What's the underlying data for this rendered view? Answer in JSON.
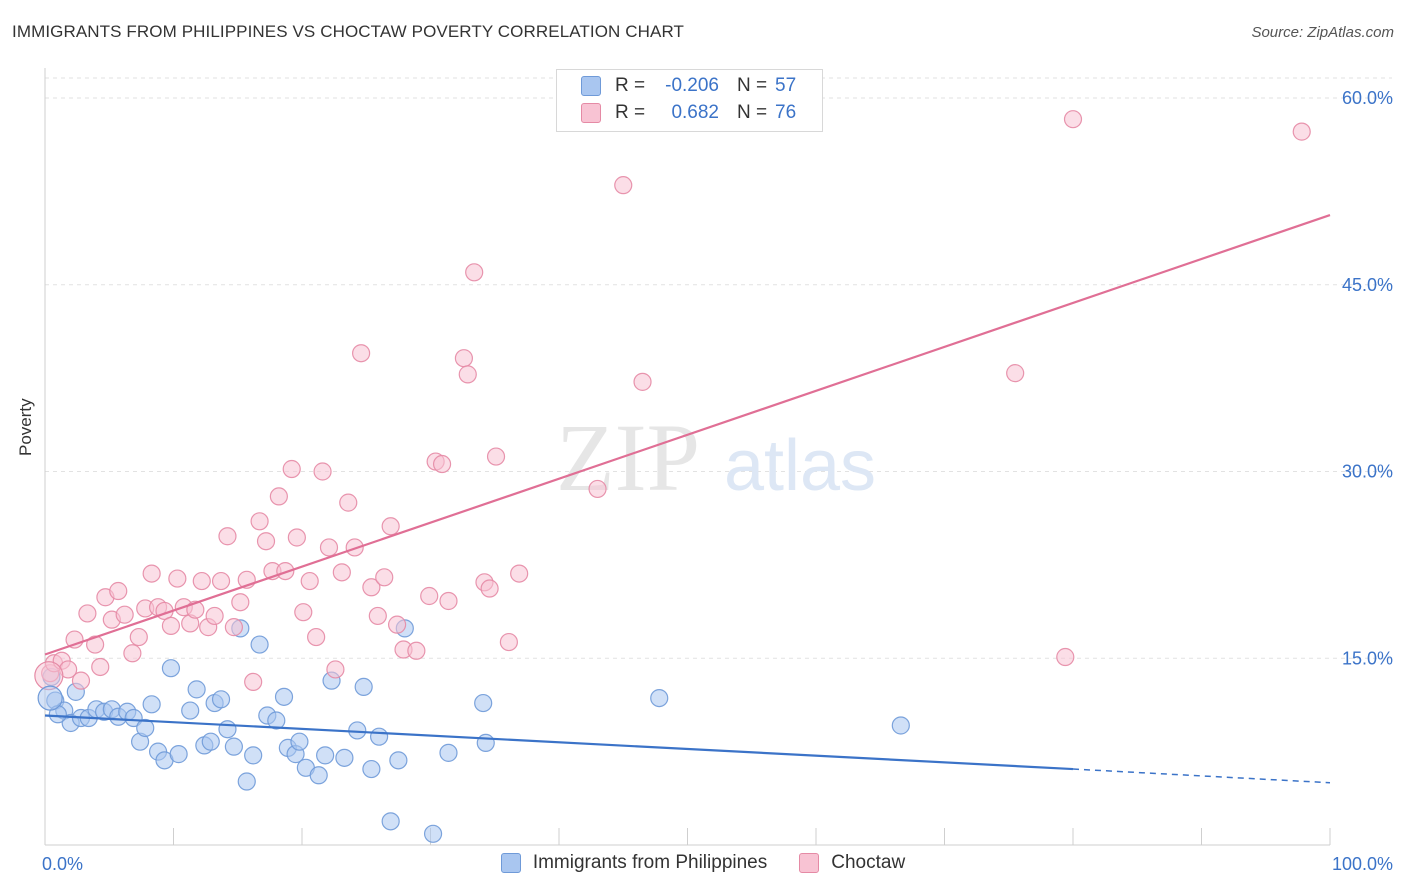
{
  "header": {
    "title": "IMMIGRANTS FROM PHILIPPINES VS CHOCTAW POVERTY CORRELATION CHART",
    "source": "Source: ZipAtlas.com"
  },
  "watermark": {
    "part1": "ZIP",
    "part2": "atlas"
  },
  "legend": {
    "rows": [
      {
        "r_label": "R =",
        "r_value": "-0.206",
        "n_label": "N =",
        "n_value": "57",
        "color": "#a9c6f0",
        "border": "#6f9ad8"
      },
      {
        "r_label": "R =",
        "r_value": "0.682",
        "n_label": "N =",
        "n_value": "76",
        "color": "#f8c3d3",
        "border": "#e58aa5"
      }
    ]
  },
  "bottom_legend": {
    "items": [
      {
        "label": "Immigrants from Philippines",
        "color": "#a9c6f0",
        "border": "#6f9ad8"
      },
      {
        "label": "Choctaw",
        "color": "#f8c3d3",
        "border": "#e58aa5"
      }
    ]
  },
  "chart_data": {
    "type": "scatter",
    "title": "IMMIGRANTS FROM PHILIPPINES VS CHOCTAW POVERTY CORRELATION CHART",
    "xlabel": "",
    "ylabel": "Poverty",
    "xlim": [
      0,
      100
    ],
    "ylim": [
      0,
      60
    ],
    "x_tick_labels": [
      "0.0%",
      "100.0%"
    ],
    "y_ticks": [
      15,
      30,
      45,
      60
    ],
    "y_tick_labels": [
      "15.0%",
      "30.0%",
      "45.0%",
      "60.0%"
    ],
    "grid": true,
    "legend_position": "top-center",
    "series": [
      {
        "name": "Immigrants from Philippines",
        "color": "#6f9ad8",
        "fill": "#a9c6f0",
        "trend": {
          "x": [
            0,
            80
          ],
          "y": [
            10.4,
            6.1
          ],
          "dashed_to": [
            100,
            5.0
          ],
          "line_color": "#3b73c8"
        },
        "points": [
          [
            0.5,
            13.5
          ],
          [
            0.8,
            11.6
          ],
          [
            1.5,
            10.8
          ],
          [
            2.0,
            9.8
          ],
          [
            2.4,
            12.3
          ],
          [
            2.8,
            10.2
          ],
          [
            3.4,
            10.2
          ],
          [
            4.0,
            10.9
          ],
          [
            4.6,
            10.7
          ],
          [
            5.2,
            10.9
          ],
          [
            5.7,
            10.3
          ],
          [
            6.4,
            10.7
          ],
          [
            6.9,
            10.2
          ],
          [
            7.4,
            8.3
          ],
          [
            7.8,
            9.4
          ],
          [
            8.3,
            11.3
          ],
          [
            8.8,
            7.5
          ],
          [
            9.3,
            6.8
          ],
          [
            9.8,
            14.2
          ],
          [
            10.4,
            7.3
          ],
          [
            11.3,
            10.8
          ],
          [
            11.8,
            12.5
          ],
          [
            12.4,
            8.0
          ],
          [
            12.9,
            8.3
          ],
          [
            13.2,
            11.4
          ],
          [
            13.7,
            11.7
          ],
          [
            14.2,
            9.3
          ],
          [
            14.7,
            7.9
          ],
          [
            15.2,
            17.4
          ],
          [
            15.7,
            5.1
          ],
          [
            16.2,
            7.2
          ],
          [
            16.7,
            16.1
          ],
          [
            17.3,
            10.4
          ],
          [
            18.0,
            10.0
          ],
          [
            18.6,
            11.9
          ],
          [
            18.9,
            7.8
          ],
          [
            19.5,
            7.3
          ],
          [
            19.8,
            8.3
          ],
          [
            20.3,
            6.2
          ],
          [
            21.3,
            5.6
          ],
          [
            21.8,
            7.2
          ],
          [
            22.3,
            13.2
          ],
          [
            23.3,
            7.0
          ],
          [
            24.3,
            9.2
          ],
          [
            24.8,
            12.7
          ],
          [
            25.4,
            6.1
          ],
          [
            26.0,
            8.7
          ],
          [
            26.9,
            1.9
          ],
          [
            27.5,
            6.8
          ],
          [
            28.0,
            17.4
          ],
          [
            30.2,
            0.9
          ],
          [
            31.4,
            7.4
          ],
          [
            34.1,
            11.4
          ],
          [
            34.3,
            8.2
          ],
          [
            47.8,
            11.8
          ],
          [
            66.6,
            9.6
          ],
          [
            1.0,
            10.5
          ]
        ]
      },
      {
        "name": "Choctaw",
        "color": "#e58aa5",
        "fill": "#f8c3d3",
        "trend": {
          "x": [
            0,
            100
          ],
          "y": [
            15.3,
            50.6
          ],
          "line_color": "#e06f95"
        },
        "points": [
          [
            0.4,
            13.8
          ],
          [
            0.7,
            14.6
          ],
          [
            1.3,
            14.8
          ],
          [
            1.8,
            14.1
          ],
          [
            2.3,
            16.5
          ],
          [
            2.8,
            13.2
          ],
          [
            3.3,
            18.6
          ],
          [
            3.9,
            16.1
          ],
          [
            4.3,
            14.3
          ],
          [
            4.7,
            19.9
          ],
          [
            5.2,
            18.1
          ],
          [
            5.7,
            20.4
          ],
          [
            6.2,
            18.5
          ],
          [
            6.8,
            15.4
          ],
          [
            7.3,
            16.7
          ],
          [
            7.8,
            19.0
          ],
          [
            8.3,
            21.8
          ],
          [
            8.8,
            19.1
          ],
          [
            9.3,
            18.8
          ],
          [
            9.8,
            17.6
          ],
          [
            10.3,
            21.4
          ],
          [
            10.8,
            19.1
          ],
          [
            11.3,
            17.8
          ],
          [
            11.7,
            18.9
          ],
          [
            12.2,
            21.2
          ],
          [
            12.7,
            17.5
          ],
          [
            13.2,
            18.4
          ],
          [
            13.7,
            21.2
          ],
          [
            14.2,
            24.8
          ],
          [
            14.7,
            17.5
          ],
          [
            15.2,
            19.5
          ],
          [
            15.7,
            21.3
          ],
          [
            16.2,
            13.1
          ],
          [
            16.7,
            26.0
          ],
          [
            17.2,
            24.4
          ],
          [
            17.7,
            22.0
          ],
          [
            18.2,
            28.0
          ],
          [
            18.7,
            22.0
          ],
          [
            19.2,
            30.2
          ],
          [
            19.6,
            24.7
          ],
          [
            20.1,
            18.7
          ],
          [
            20.6,
            21.2
          ],
          [
            21.1,
            16.7
          ],
          [
            21.6,
            30.0
          ],
          [
            22.1,
            23.9
          ],
          [
            22.6,
            14.1
          ],
          [
            23.1,
            21.9
          ],
          [
            23.6,
            27.5
          ],
          [
            24.1,
            23.9
          ],
          [
            24.6,
            39.5
          ],
          [
            25.4,
            20.7
          ],
          [
            25.9,
            18.4
          ],
          [
            26.4,
            21.5
          ],
          [
            26.9,
            25.6
          ],
          [
            27.4,
            17.7
          ],
          [
            27.9,
            15.7
          ],
          [
            28.9,
            15.6
          ],
          [
            29.9,
            20.0
          ],
          [
            30.4,
            30.8
          ],
          [
            30.9,
            30.6
          ],
          [
            31.4,
            19.6
          ],
          [
            32.6,
            39.1
          ],
          [
            32.9,
            37.8
          ],
          [
            33.4,
            46.0
          ],
          [
            34.2,
            21.1
          ],
          [
            34.6,
            20.6
          ],
          [
            35.1,
            31.2
          ],
          [
            36.1,
            16.3
          ],
          [
            36.9,
            21.8
          ],
          [
            43.0,
            28.6
          ],
          [
            45.0,
            53.0
          ],
          [
            46.5,
            37.2
          ],
          [
            75.5,
            37.9
          ],
          [
            80.0,
            58.3
          ],
          [
            97.8,
            57.3
          ],
          [
            79.4,
            15.1
          ]
        ]
      }
    ]
  }
}
